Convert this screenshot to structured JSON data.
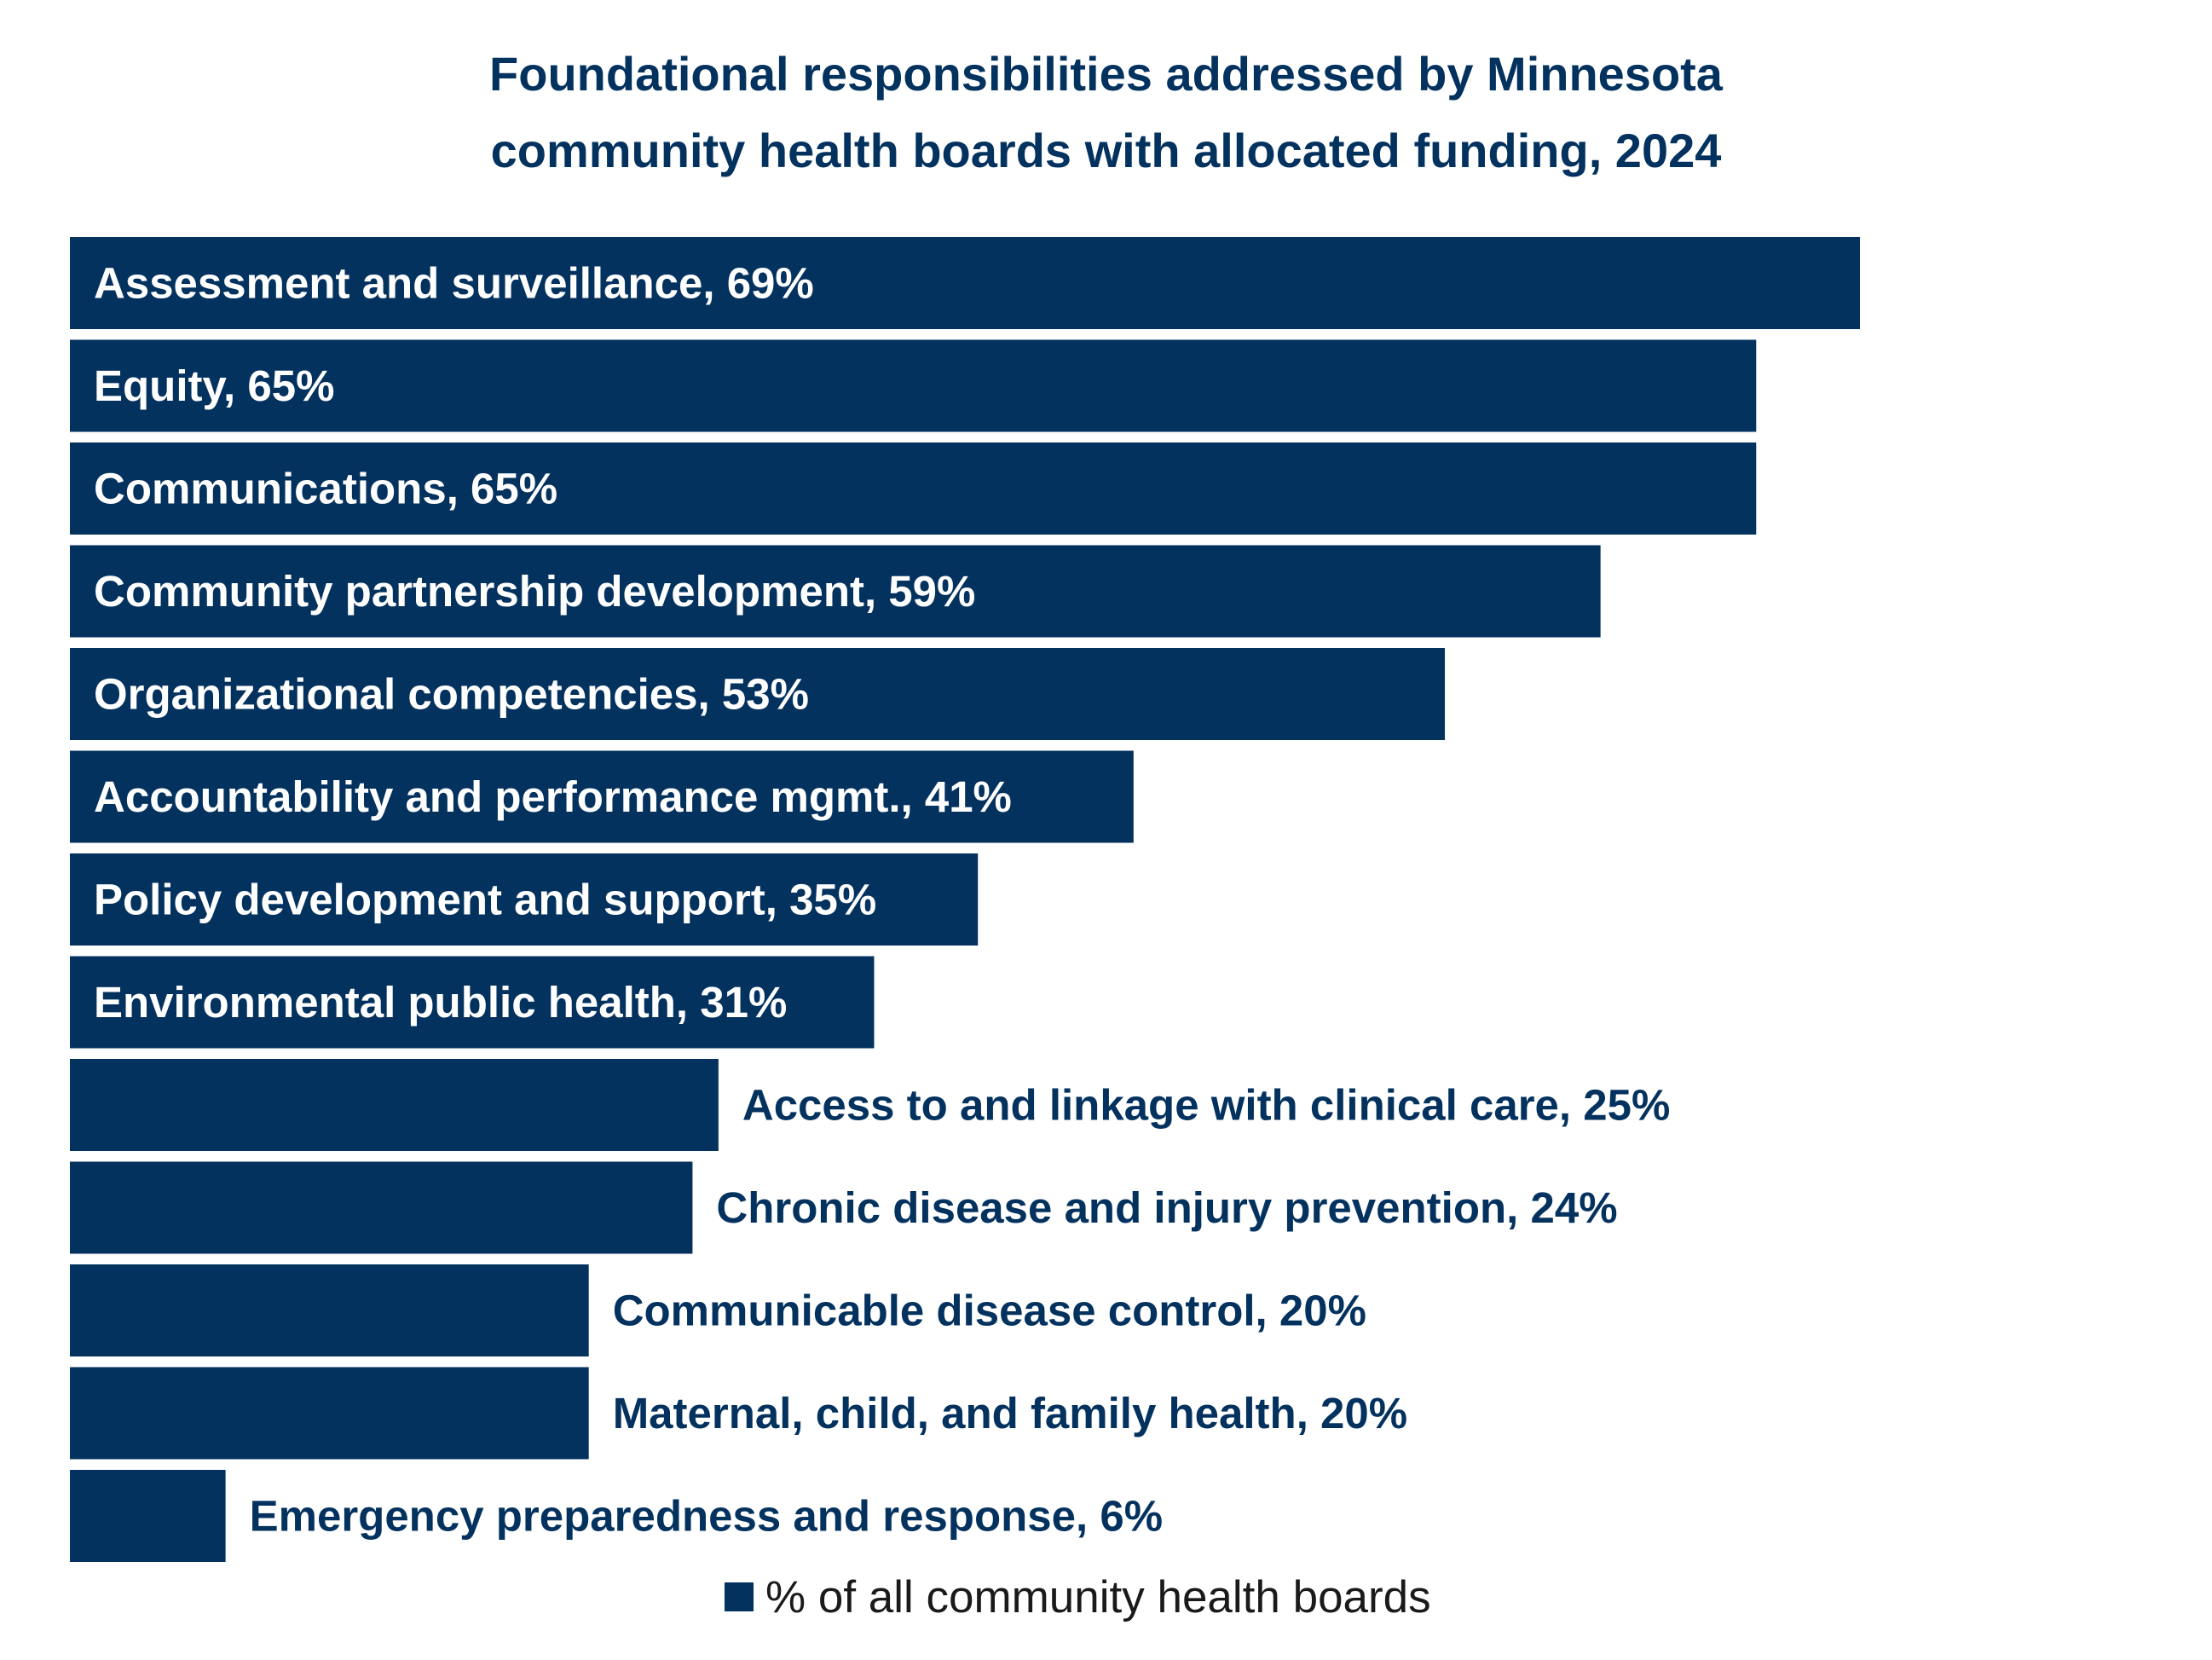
{
  "chart_data": {
    "type": "bar",
    "orientation": "horizontal",
    "title_lines": [
      "Foundational responsibilities addressed by Minnesota",
      "community health boards with allocated funding, 2024"
    ],
    "categories": [
      "Assessment and surveillance",
      "Equity",
      "Communications",
      "Community partnership development",
      "Organizational competencies",
      "Accountability and performance mgmt.",
      "Policy development and support",
      "Environmental public health",
      "Access to and linkage with clinical care",
      "Chronic disease and injury prevention",
      "Communicable disease control",
      "Maternal, child, and family health",
      "Emergency preparedness and response"
    ],
    "values": [
      69,
      65,
      65,
      59,
      53,
      41,
      35,
      31,
      25,
      24,
      20,
      20,
      6
    ],
    "labels": [
      "Assessment and surveillance, 69%",
      "Equity, 65%",
      "Communications, 65%",
      "Community partnership development, 59%",
      "Organizational competencies, 53%",
      "Accountability and performance mgmt., 41%",
      "Policy development and support, 35%",
      "Environmental public health, 31%",
      "Access to and linkage with clinical care, 25%",
      "Chronic disease and injury prevention, 24%",
      "Communicable disease control, 20%",
      "Maternal, child, and family health, 20%",
      "Emergency preparedness and response, 6%"
    ],
    "xlim": [
      0,
      69
    ],
    "legend": "% of all community health boards",
    "legend_position": "bottom-center",
    "grid": false,
    "xlabel": "",
    "ylabel": ""
  },
  "colors": {
    "bar": "#04325f",
    "label_inside": "#ffffff",
    "label_outside": "#04325f",
    "title": "#04325f"
  }
}
